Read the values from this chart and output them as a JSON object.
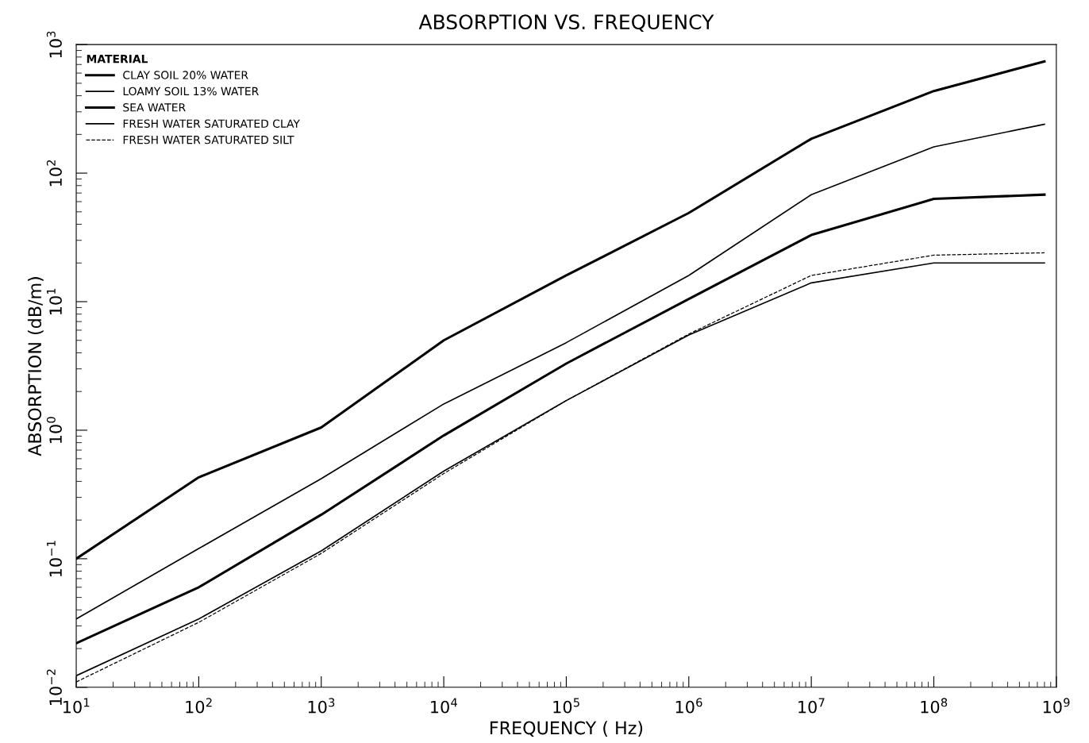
{
  "chart_data": {
    "type": "line",
    "title": "ABSORPTION VS. FREQUENCY",
    "xlabel": "FREQUENCY ( Hz)",
    "ylabel": "ABSORPTION (dB/m)",
    "legend_title": "MATERIAL",
    "legend": "top left",
    "log": "xy",
    "grid": false,
    "marker": "none",
    "x": [
      10,
      100,
      1000,
      10000,
      100000,
      1000000,
      10000000,
      100000000,
      800000000
    ],
    "xlim": [
      10,
      1000000000
    ],
    "xticks": [
      {
        "value": 10,
        "label": "10$^{1}$"
      },
      {
        "value": 100,
        "label": "10$^{2}$"
      },
      {
        "value": 1000,
        "label": "10$^{3}$"
      },
      {
        "value": 10000,
        "label": "10$^{4}$"
      },
      {
        "value": 100000,
        "label": "10$^{5}$"
      },
      {
        "value": 1000000,
        "label": "10$^{6}$"
      },
      {
        "value": 10000000,
        "label": "10$^{7}$"
      },
      {
        "value": 100000000,
        "label": "10$^{8}$"
      },
      {
        "value": 1000000000,
        "label": "10$^{9}$"
      }
    ],
    "ylim": [
      0.01,
      1000
    ],
    "yticks": [
      {
        "value": 0.01,
        "label": "10$^{−2}$"
      },
      {
        "value": 0.1,
        "label": "10$^{−1}$"
      },
      {
        "value": 1,
        "label": "10$^{0}$"
      },
      {
        "value": 10,
        "label": "10$^{1}$"
      },
      {
        "value": 100,
        "label": "10$^{2}$"
      },
      {
        "value": 1000,
        "label": "10$^{3}$"
      }
    ],
    "series": [
      {
        "name": "CLAY SOIL 20% WATER",
        "color": "#000000",
        "line_style": "solid",
        "values": [
          0.1,
          0.43,
          1.05,
          5,
          16,
          49,
          185,
          435,
          740
        ]
      },
      {
        "name": "LOAMY SOIL 13% WATER",
        "color": "#000000",
        "line_style": "solid",
        "values": [
          0.034,
          0.12,
          0.42,
          1.6,
          4.8,
          16,
          68,
          160,
          240
        ]
      },
      {
        "name": "SEA WATER",
        "color": "#000000",
        "line_style": "solid",
        "values": [
          0.022,
          0.06,
          0.22,
          0.91,
          3.3,
          10.5,
          33,
          63,
          68
        ]
      },
      {
        "name": "FRESH WATER SATURATED CLAY",
        "color": "#000000",
        "line_style": "solid",
        "values": [
          0.0123,
          0.034,
          0.115,
          0.48,
          1.7,
          5.5,
          14,
          20,
          20
        ]
      },
      {
        "name": "FRESH WATER SATURATED SILT",
        "color": "#000000",
        "line_style": "dashed",
        "values": [
          0.011,
          0.032,
          0.11,
          0.46,
          1.7,
          5.6,
          16,
          23,
          24
        ]
      }
    ]
  }
}
